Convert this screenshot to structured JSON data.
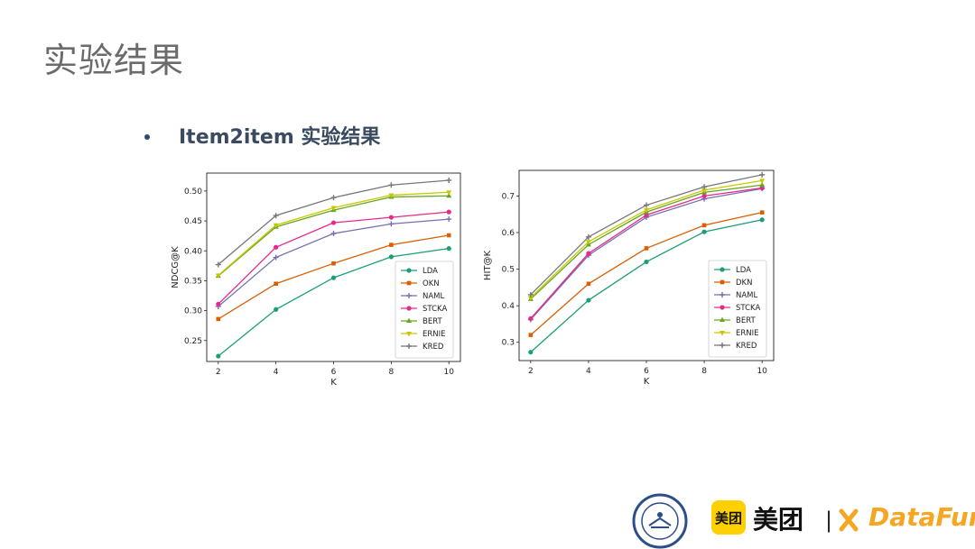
{
  "slide": {
    "title": "实验结果",
    "bullet": "Item2item 实验结果"
  },
  "footer": {
    "meituan_logo_text": "美团",
    "meituan_text": "美团",
    "separator": "|",
    "datafun_text": "DataFun."
  },
  "colors": {
    "LDA": "#1b9e77",
    "OKN": "#d95f02",
    "DKN": "#d95f02",
    "NAML": "#7570b3",
    "STCKA": "#e7298a",
    "BERT": "#66a61e",
    "ERNIE": "#c8c800",
    "KRED": "#777777"
  },
  "chart_data": [
    {
      "type": "line",
      "title": "",
      "xlabel": "K",
      "ylabel": "NDCG@K",
      "x": [
        2,
        4,
        6,
        8,
        10
      ],
      "xlim": [
        1.6,
        10.4
      ],
      "ylim": [
        0.215,
        0.53
      ],
      "xticks": [
        "2",
        "4",
        "6",
        "8",
        "10"
      ],
      "yticks": [
        "0.25",
        "0.30",
        "0.35",
        "0.40",
        "0.45",
        "0.50"
      ],
      "legend_position": "lower-right",
      "series": [
        {
          "name": "LDA",
          "values": [
            0.224,
            0.302,
            0.355,
            0.39,
            0.404
          ]
        },
        {
          "name": "OKN",
          "values": [
            0.286,
            0.345,
            0.379,
            0.41,
            0.426
          ]
        },
        {
          "name": "NAML",
          "values": [
            0.307,
            0.389,
            0.429,
            0.445,
            0.453
          ]
        },
        {
          "name": "STCKA",
          "values": [
            0.311,
            0.406,
            0.447,
            0.456,
            0.465
          ]
        },
        {
          "name": "BERT",
          "values": [
            0.358,
            0.44,
            0.468,
            0.49,
            0.492
          ]
        },
        {
          "name": "ERNIE",
          "values": [
            0.359,
            0.443,
            0.472,
            0.493,
            0.498
          ]
        },
        {
          "name": "KRED",
          "values": [
            0.377,
            0.459,
            0.489,
            0.51,
            0.518
          ]
        }
      ]
    },
    {
      "type": "line",
      "title": "",
      "xlabel": "K",
      "ylabel": "HIT@K",
      "x": [
        2,
        4,
        6,
        8,
        10
      ],
      "xlim": [
        1.6,
        10.4
      ],
      "ylim": [
        0.25,
        0.77
      ],
      "xticks": [
        "2",
        "4",
        "6",
        "8",
        "10"
      ],
      "yticks": [
        "0.3",
        "0.4",
        "0.5",
        "0.6",
        "0.7"
      ],
      "legend_position": "lower-right",
      "series": [
        {
          "name": "LDA",
          "values": [
            0.273,
            0.415,
            0.52,
            0.602,
            0.635
          ]
        },
        {
          "name": "DKN",
          "values": [
            0.32,
            0.46,
            0.557,
            0.62,
            0.655
          ]
        },
        {
          "name": "NAML",
          "values": [
            0.362,
            0.538,
            0.642,
            0.692,
            0.72
          ]
        },
        {
          "name": "STCKA",
          "values": [
            0.365,
            0.543,
            0.648,
            0.7,
            0.722
          ]
        },
        {
          "name": "BERT",
          "values": [
            0.418,
            0.567,
            0.656,
            0.71,
            0.73
          ]
        },
        {
          "name": "ERNIE",
          "values": [
            0.422,
            0.575,
            0.662,
            0.716,
            0.742
          ]
        },
        {
          "name": "KRED",
          "values": [
            0.43,
            0.588,
            0.675,
            0.725,
            0.758
          ]
        }
      ]
    }
  ]
}
